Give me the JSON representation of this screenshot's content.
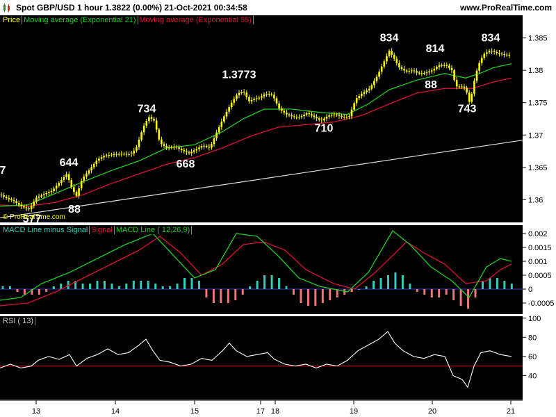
{
  "header": {
    "title": "Spot GBP/USD   1 hour   1.3822 (0.00%)   21-Oct-2021 00:34:58",
    "site": "www.ProRealTime.com",
    "copyright": "© ProRealTime.com"
  },
  "colors": {
    "price": "#ffff00",
    "ema21": "#22cc22",
    "ema55": "#dd1133",
    "trendline": "#dddddd",
    "hist_pos": "#33ccbb",
    "hist_neg": "#ee7777",
    "rsi": "#ffffff",
    "rsi_level": "#dd1133"
  },
  "chart_data": [
    {
      "type": "candlestick",
      "legend": [
        "Price",
        "Moving average (Exponential 21)",
        "Moving average (Exponential 55)"
      ],
      "y_ticks": [
        "1.385",
        "1.38",
        "1.375",
        "1.37",
        "1.365",
        "1.36"
      ],
      "ylim": [
        1.3565,
        1.3885
      ],
      "x_ticks": [
        "13",
        "14",
        "15",
        "17",
        "18",
        "19",
        "20",
        "21"
      ],
      "price_points": [
        [
          0,
          1.3608
        ],
        [
          10,
          1.3602
        ],
        [
          20,
          1.3598
        ],
        [
          30,
          1.359
        ],
        [
          42,
          1.3585
        ],
        [
          52,
          1.3603
        ],
        [
          62,
          1.3608
        ],
        [
          75,
          1.3614
        ],
        [
          88,
          1.363
        ],
        [
          96,
          1.364
        ],
        [
          104,
          1.3616
        ],
        [
          110,
          1.3606
        ],
        [
          118,
          1.3632
        ],
        [
          130,
          1.3648
        ],
        [
          140,
          1.3662
        ],
        [
          150,
          1.3668
        ],
        [
          162,
          1.367
        ],
        [
          175,
          1.3671
        ],
        [
          188,
          1.367
        ],
        [
          196,
          1.368
        ],
        [
          206,
          1.3712
        ],
        [
          214,
          1.3728
        ],
        [
          222,
          1.3722
        ],
        [
          230,
          1.3688
        ],
        [
          240,
          1.368
        ],
        [
          252,
          1.3682
        ],
        [
          262,
          1.3676
        ],
        [
          272,
          1.3672
        ],
        [
          282,
          1.3678
        ],
        [
          292,
          1.3684
        ],
        [
          302,
          1.368
        ],
        [
          312,
          1.3705
        ],
        [
          322,
          1.3728
        ],
        [
          332,
          1.3748
        ],
        [
          342,
          1.3764
        ],
        [
          350,
          1.3768
        ],
        [
          358,
          1.3752
        ],
        [
          366,
          1.3756
        ],
        [
          374,
          1.3758
        ],
        [
          382,
          1.3764
        ],
        [
          392,
          1.3762
        ],
        [
          402,
          1.374
        ],
        [
          412,
          1.3732
        ],
        [
          422,
          1.3728
        ],
        [
          432,
          1.3728
        ],
        [
          442,
          1.3734
        ],
        [
          452,
          1.3728
        ],
        [
          462,
          1.3722
        ],
        [
          472,
          1.373
        ],
        [
          482,
          1.3732
        ],
        [
          492,
          1.3728
        ],
        [
          502,
          1.3728
        ],
        [
          512,
          1.3756
        ],
        [
          522,
          1.3765
        ],
        [
          532,
          1.3772
        ],
        [
          542,
          1.379
        ],
        [
          552,
          1.3812
        ],
        [
          560,
          1.383
        ],
        [
          566,
          1.382
        ],
        [
          574,
          1.3805
        ],
        [
          584,
          1.3798
        ],
        [
          594,
          1.38
        ],
        [
          602,
          1.3795
        ],
        [
          612,
          1.3796
        ],
        [
          622,
          1.38
        ],
        [
          632,
          1.3808
        ],
        [
          642,
          1.3808
        ],
        [
          650,
          1.38
        ],
        [
          656,
          1.3775
        ],
        [
          664,
          1.3775
        ],
        [
          670,
          1.3772
        ],
        [
          676,
          1.3748
        ],
        [
          682,
          1.3782
        ],
        [
          688,
          1.3808
        ],
        [
          696,
          1.3825
        ],
        [
          704,
          1.383
        ],
        [
          712,
          1.3828
        ],
        [
          720,
          1.3825
        ],
        [
          728,
          1.3824
        ],
        [
          736,
          1.3822
        ]
      ],
      "ema21": [
        [
          0,
          1.359
        ],
        [
          40,
          1.3592
        ],
        [
          80,
          1.361
        ],
        [
          120,
          1.3628
        ],
        [
          160,
          1.3645
        ],
        [
          200,
          1.366
        ],
        [
          240,
          1.368
        ],
        [
          280,
          1.3685
        ],
        [
          320,
          1.3705
        ],
        [
          350,
          1.3725
        ],
        [
          380,
          1.374
        ],
        [
          420,
          1.374
        ],
        [
          460,
          1.3735
        ],
        [
          500,
          1.3732
        ],
        [
          530,
          1.3748
        ],
        [
          560,
          1.377
        ],
        [
          600,
          1.3785
        ],
        [
          640,
          1.3795
        ],
        [
          670,
          1.3788
        ],
        [
          690,
          1.3795
        ],
        [
          710,
          1.3804
        ],
        [
          736,
          1.381
        ]
      ],
      "ema55": [
        [
          0,
          1.3592
        ],
        [
          40,
          1.359
        ],
        [
          80,
          1.3596
        ],
        [
          120,
          1.3608
        ],
        [
          160,
          1.3625
        ],
        [
          200,
          1.364
        ],
        [
          240,
          1.3655
        ],
        [
          280,
          1.3665
        ],
        [
          320,
          1.368
        ],
        [
          360,
          1.3698
        ],
        [
          400,
          1.3712
        ],
        [
          440,
          1.3716
        ],
        [
          480,
          1.372
        ],
        [
          520,
          1.373
        ],
        [
          560,
          1.3748
        ],
        [
          600,
          1.3765
        ],
        [
          640,
          1.3772
        ],
        [
          680,
          1.3772
        ],
        [
          710,
          1.3782
        ],
        [
          736,
          1.3788
        ]
      ],
      "trendline": [
        [
          0,
          1.3572
        ],
        [
          752,
          1.3692
        ]
      ],
      "annotations": [
        {
          "text": "577",
          "x": 46,
          "y": 1.3565
        },
        {
          "text": "7",
          "x": 4,
          "y": 1.364
        },
        {
          "text": "644",
          "x": 99,
          "y": 1.3652
        },
        {
          "text": "88",
          "x": 107,
          "y": 1.358
        },
        {
          "text": "734",
          "x": 211,
          "y": 1.3735
        },
        {
          "text": "668",
          "x": 267,
          "y": 1.365
        },
        {
          "text": "1.3773",
          "x": 344,
          "y": 1.3788
        },
        {
          "text": "710",
          "x": 466,
          "y": 1.3705
        },
        {
          "text": "834",
          "x": 560,
          "y": 1.3845
        },
        {
          "text": "814",
          "x": 626,
          "y": 1.3828
        },
        {
          "text": "88",
          "x": 620,
          "y": 1.3772
        },
        {
          "text": "743",
          "x": 672,
          "y": 1.3735
        },
        {
          "text": "834",
          "x": 706,
          "y": 1.3845
        }
      ]
    },
    {
      "type": "macd",
      "legend": [
        "MACD Line minus Signal",
        "Signal",
        "MACD Line ( 12,26,9)"
      ],
      "y_ticks": [
        "0.002",
        "0.0015",
        "0.001",
        "0.0005",
        "0",
        "-0.0005"
      ],
      "ylim": [
        -0.0009,
        0.0023
      ],
      "macd": [
        [
          0,
          -0.0004
        ],
        [
          30,
          -0.0003
        ],
        [
          60,
          0.0002
        ],
        [
          100,
          0.0006
        ],
        [
          140,
          0.0011
        ],
        [
          180,
          0.0016
        ],
        [
          220,
          0.002
        ],
        [
          250,
          0.0012
        ],
        [
          280,
          0.0004
        ],
        [
          310,
          0.0007
        ],
        [
          340,
          0.002
        ],
        [
          370,
          0.0019
        ],
        [
          400,
          0.0012
        ],
        [
          430,
          0.0004
        ],
        [
          460,
          0.0001
        ],
        [
          500,
          -0.0001
        ],
        [
          530,
          0.0006
        ],
        [
          565,
          0.0021
        ],
        [
          590,
          0.0016
        ],
        [
          620,
          0.0008
        ],
        [
          650,
          0.0003
        ],
        [
          675,
          -0.0003
        ],
        [
          700,
          0.0008
        ],
        [
          720,
          0.0011
        ],
        [
          736,
          0.001
        ]
      ],
      "signal": [
        [
          0,
          -0.0006
        ],
        [
          40,
          -0.0005
        ],
        [
          80,
          -0.0001
        ],
        [
          120,
          0.0004
        ],
        [
          160,
          0.0009
        ],
        [
          200,
          0.0014
        ],
        [
          230,
          0.0019
        ],
        [
          260,
          0.0013
        ],
        [
          290,
          0.0005
        ],
        [
          320,
          0.0009
        ],
        [
          350,
          0.0016
        ],
        [
          380,
          0.0017
        ],
        [
          410,
          0.0014
        ],
        [
          440,
          0.0007
        ],
        [
          480,
          0.0002
        ],
        [
          510,
          0.0
        ],
        [
          540,
          0.0006
        ],
        [
          585,
          0.0017
        ],
        [
          610,
          0.0013
        ],
        [
          640,
          0.0009
        ],
        [
          670,
          0.0002
        ],
        [
          700,
          0.0003
        ],
        [
          720,
          0.0007
        ],
        [
          736,
          0.0009
        ]
      ],
      "histogram": [
        0.0001,
        0.0001,
        -0.0001,
        -0.0002,
        -0.0002,
        -0.0002,
        -0.0001,
        0.0001,
        0.0002,
        0.0003,
        0.0003,
        0.0002,
        0.0002,
        0.0003,
        0.0003,
        0.0002,
        0.0001,
        0.0002,
        0.0003,
        0.0003,
        0.0003,
        0.0002,
        0.0001,
        0.0001,
        0.0002,
        0.0004,
        0.0004,
        0.0003,
        -0.0003,
        -0.0005,
        -0.0005,
        -0.0005,
        -0.0004,
        -0.0002,
        0.0001,
        0.0003,
        0.0005,
        0.0005,
        0.0004,
        0.0001,
        -0.0002,
        -0.0005,
        -0.0006,
        -0.0006,
        -0.0005,
        -0.0004,
        -0.0003,
        -0.0002,
        -0.0001,
        0.0,
        0.0001,
        0.0003,
        0.0004,
        0.0005,
        0.0006,
        0.0005,
        0.0002,
        -0.0001,
        -0.0002,
        -0.0003,
        -0.0003,
        -0.0002,
        -0.0004,
        -0.0006,
        -0.0007,
        -0.0003,
        0.0003,
        0.0004,
        0.0004,
        0.0003,
        0.0002
      ]
    },
    {
      "type": "line",
      "legend": [
        "RSI ( 13)"
      ],
      "y_ticks": [
        "100",
        "80",
        "60",
        "40"
      ],
      "ylim": [
        15,
        102
      ],
      "level": 50,
      "rsi": [
        [
          0,
          48
        ],
        [
          15,
          52
        ],
        [
          30,
          48
        ],
        [
          45,
          50
        ],
        [
          55,
          56
        ],
        [
          70,
          60
        ],
        [
          85,
          57
        ],
        [
          100,
          62
        ],
        [
          110,
          50
        ],
        [
          125,
          58
        ],
        [
          140,
          62
        ],
        [
          155,
          68
        ],
        [
          170,
          62
        ],
        [
          185,
          64
        ],
        [
          200,
          72
        ],
        [
          210,
          78
        ],
        [
          220,
          66
        ],
        [
          230,
          56
        ],
        [
          245,
          54
        ],
        [
          260,
          50
        ],
        [
          275,
          52
        ],
        [
          290,
          58
        ],
        [
          305,
          56
        ],
        [
          320,
          66
        ],
        [
          330,
          74
        ],
        [
          340,
          66
        ],
        [
          355,
          60
        ],
        [
          370,
          62
        ],
        [
          385,
          64
        ],
        [
          395,
          57
        ],
        [
          410,
          52
        ],
        [
          425,
          50
        ],
        [
          440,
          52
        ],
        [
          455,
          48
        ],
        [
          470,
          52
        ],
        [
          485,
          50
        ],
        [
          500,
          56
        ],
        [
          515,
          66
        ],
        [
          530,
          72
        ],
        [
          545,
          78
        ],
        [
          558,
          86
        ],
        [
          568,
          74
        ],
        [
          580,
          66
        ],
        [
          595,
          60
        ],
        [
          610,
          58
        ],
        [
          625,
          62
        ],
        [
          640,
          60
        ],
        [
          652,
          40
        ],
        [
          665,
          36
        ],
        [
          673,
          28
        ],
        [
          682,
          50
        ],
        [
          692,
          64
        ],
        [
          705,
          66
        ],
        [
          720,
          62
        ],
        [
          736,
          60
        ]
      ]
    }
  ]
}
